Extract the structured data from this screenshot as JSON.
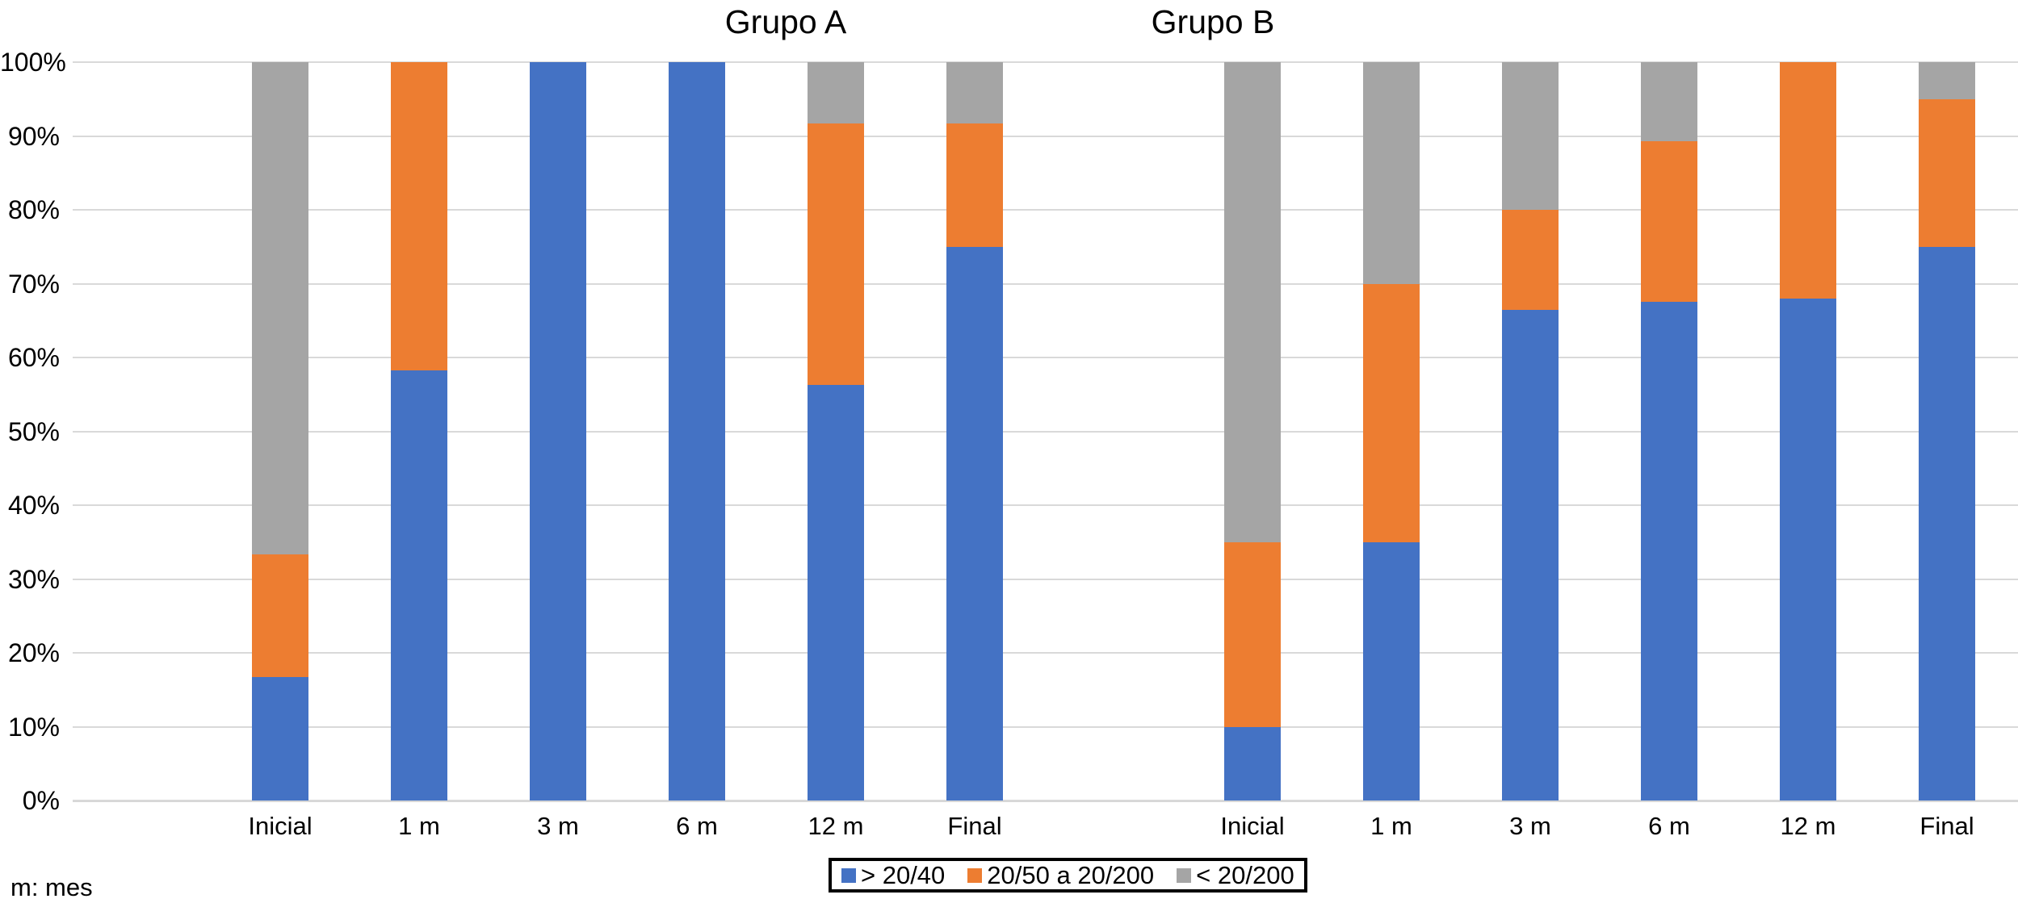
{
  "chart_data": {
    "type": "bar",
    "stacked": true,
    "unit": "percent",
    "ylim": [
      0,
      100
    ],
    "yticks": [
      "0%",
      "10%",
      "20%",
      "30%",
      "40%",
      "50%",
      "60%",
      "70%",
      "80%",
      "90%",
      "100%"
    ],
    "grid": "horizontal",
    "legend_position": "bottom-center",
    "legend": [
      {
        "label": "> 20/40",
        "color": "#4472C4"
      },
      {
        "label": "20/50 a 20/200",
        "color": "#ED7D31"
      },
      {
        "label": "< 20/200",
        "color": "#A5A5A5"
      }
    ],
    "groups": [
      {
        "title": "Grupo A",
        "categories": [
          "Inicial",
          "1 m",
          "3 m",
          "6 m",
          "12 m",
          "Final"
        ],
        "series": [
          {
            "name": "> 20/40",
            "values": [
              16.7,
              58.3,
              100,
              100,
              56.3,
              75
            ]
          },
          {
            "name": "20/50 a 20/200",
            "values": [
              16.6,
              41.7,
              0,
              0,
              35.4,
              16.7
            ]
          },
          {
            "name": "< 20/200",
            "values": [
              66.7,
              0,
              0,
              0,
              8.3,
              8.3
            ]
          }
        ]
      },
      {
        "title": "Grupo B",
        "categories": [
          "Inicial",
          "1 m",
          "3 m",
          "6 m",
          "12 m",
          "Final"
        ],
        "series": [
          {
            "name": "> 20/40",
            "values": [
              10,
              35,
              66.5,
              67.5,
              68,
              75
            ]
          },
          {
            "name": "20/50 a 20/200",
            "values": [
              25,
              35,
              13.5,
              21.8,
              32,
              20
            ]
          },
          {
            "name": "< 20/200",
            "values": [
              65,
              30,
              20,
              10.7,
              0,
              5
            ]
          }
        ]
      }
    ],
    "footnote": "m: mes",
    "layout_colors": {
      "gridline": "#d9d9d9",
      "axis_line": "#d6d6d6",
      "background": "#ffffff",
      "text": "#000000"
    }
  }
}
